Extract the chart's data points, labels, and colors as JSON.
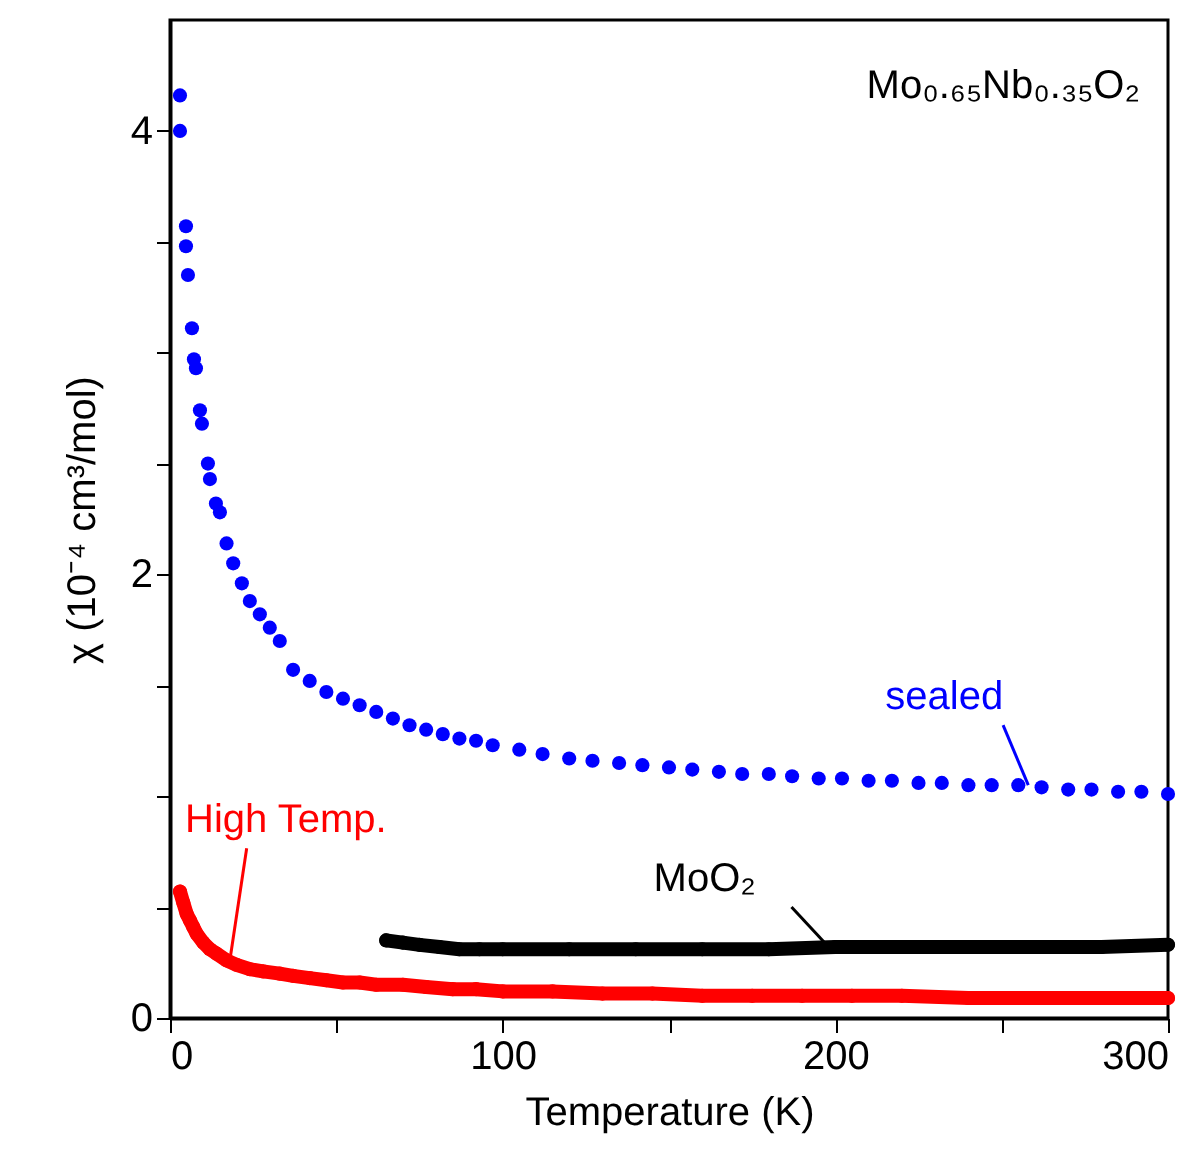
{
  "chart_data": {
    "type": "scatter",
    "xlabel": "Temperature (K)",
    "ylabel": "χ (10⁻⁴ cm³/mol)",
    "xlim": [
      0,
      300
    ],
    "ylim": [
      0,
      4.5
    ],
    "xticks": [
      0,
      {
        "value": 50,
        "label": null
      },
      100,
      {
        "value": 150,
        "label": null
      },
      200,
      {
        "value": 250,
        "label": null
      },
      300
    ],
    "yticks": [
      0,
      {
        "value": 0.5,
        "label": null
      },
      {
        "value": 1,
        "label": null
      },
      {
        "value": 1.5,
        "label": null
      },
      2,
      {
        "value": 2.5,
        "label": null
      },
      {
        "value": 3,
        "label": null
      },
      {
        "value": 3.5,
        "label": null
      },
      4
    ],
    "grid": false,
    "marker": "circle",
    "series": [
      {
        "color": "#0000ff",
        "x": [
          3,
          3,
          4.8,
          4.8,
          5.4,
          6.6,
          7.2,
          7.8,
          9,
          9.6,
          11.4,
          12,
          13.8,
          15,
          17,
          19,
          21.6,
          24,
          27,
          30,
          33,
          37,
          42,
          47,
          52,
          57,
          62,
          67,
          72,
          77,
          82,
          87,
          92,
          97,
          105,
          112,
          120,
          127,
          135,
          142,
          150,
          157,
          165,
          172,
          180,
          187,
          195,
          202,
          210,
          217,
          225,
          232,
          240,
          247,
          255,
          262,
          270,
          277,
          285,
          292,
          300
        ],
        "values": [
          4.16,
          4.0,
          3.57,
          3.48,
          3.35,
          3.11,
          2.97,
          2.93,
          2.74,
          2.68,
          2.5,
          2.43,
          2.32,
          2.28,
          2.14,
          2.05,
          1.96,
          1.88,
          1.82,
          1.76,
          1.7,
          1.57,
          1.52,
          1.47,
          1.44,
          1.41,
          1.38,
          1.35,
          1.32,
          1.3,
          1.28,
          1.26,
          1.25,
          1.23,
          1.21,
          1.19,
          1.17,
          1.16,
          1.15,
          1.14,
          1.13,
          1.12,
          1.11,
          1.1,
          1.1,
          1.09,
          1.08,
          1.08,
          1.07,
          1.07,
          1.06,
          1.06,
          1.05,
          1.05,
          1.05,
          1.04,
          1.03,
          1.03,
          1.02,
          1.02,
          1.01
        ]
      },
      {
        "type": "line",
        "color": "#000000",
        "x": [
          65,
          70,
          75,
          81,
          87,
          93,
          100,
          120,
          140,
          160,
          180,
          200,
          220,
          240,
          260,
          280,
          300
        ],
        "values": [
          0.35,
          0.34,
          0.33,
          0.32,
          0.31,
          0.31,
          0.31,
          0.31,
          0.31,
          0.31,
          0.31,
          0.32,
          0.32,
          0.32,
          0.32,
          0.32,
          0.33
        ]
      },
      {
        "type": "line",
        "color": "#ff0000",
        "x": [
          3,
          4,
          5,
          6,
          7,
          8,
          10,
          12,
          14,
          17,
          20,
          24,
          28,
          33,
          37,
          42,
          47,
          52,
          57,
          62,
          70,
          77,
          85,
          92,
          100,
          115,
          130,
          145,
          160,
          175,
          190,
          205,
          220,
          240,
          260,
          280,
          300
        ],
        "values": [
          0.57,
          0.52,
          0.47,
          0.44,
          0.41,
          0.38,
          0.34,
          0.31,
          0.29,
          0.26,
          0.24,
          0.22,
          0.21,
          0.2,
          0.19,
          0.18,
          0.17,
          0.16,
          0.16,
          0.15,
          0.15,
          0.14,
          0.13,
          0.13,
          0.12,
          0.12,
          0.11,
          0.11,
          0.1,
          0.1,
          0.1,
          0.1,
          0.1,
          0.09,
          0.09,
          0.09,
          0.09
        ]
      }
    ],
    "annotations": [
      {
        "text": "sealed",
        "x": 258,
        "y": 1.05
      },
      {
        "text": "MoO₂",
        "x": 198,
        "y": 0.32
      },
      {
        "text": "High Temp.",
        "x": 18,
        "y": 0.26
      },
      "Mo₀.₆₅Nb₀.₃₅O₂"
    ]
  }
}
